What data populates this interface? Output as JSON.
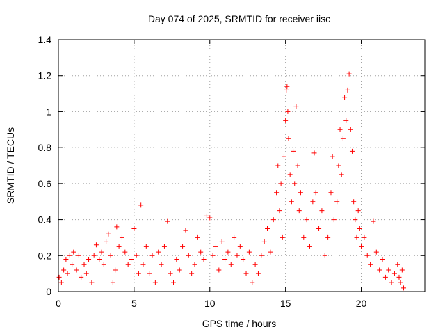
{
  "chart_data": {
    "type": "scatter",
    "title": "Day 074 of 2025, SRMTID for receiver iisc",
    "xlabel": "GPS time / hours",
    "ylabel": "SRMTID / TECUs",
    "xlim": [
      0,
      24.2
    ],
    "ylim": [
      0,
      1.4
    ],
    "xticks": [
      0,
      5,
      10,
      15,
      20
    ],
    "xtick_labels": [
      "0",
      "5",
      "10",
      "15",
      "20"
    ],
    "yticks": [
      0,
      0.2,
      0.4,
      0.6,
      0.8,
      1.0,
      1.2,
      1.4
    ],
    "ytick_labels": [
      "0",
      "0.2",
      "0.4",
      "0.6",
      "0.8",
      "1",
      "1.2",
      "1.4"
    ],
    "grid": true,
    "marker": "+",
    "marker_color": "#ff0000",
    "series": [
      {
        "name": "SRMTID",
        "points": [
          [
            0.05,
            0.08
          ],
          [
            0.2,
            0.05
          ],
          [
            0.35,
            0.12
          ],
          [
            0.5,
            0.18
          ],
          [
            0.6,
            0.1
          ],
          [
            0.75,
            0.2
          ],
          [
            0.9,
            0.15
          ],
          [
            1.0,
            0.22
          ],
          [
            1.2,
            0.12
          ],
          [
            1.35,
            0.2
          ],
          [
            1.5,
            0.08
          ],
          [
            1.7,
            0.15
          ],
          [
            1.85,
            0.1
          ],
          [
            2.0,
            0.18
          ],
          [
            2.2,
            0.05
          ],
          [
            2.35,
            0.2
          ],
          [
            2.5,
            0.26
          ],
          [
            2.7,
            0.18
          ],
          [
            2.85,
            0.22
          ],
          [
            3.0,
            0.15
          ],
          [
            3.15,
            0.28
          ],
          [
            3.3,
            0.32
          ],
          [
            3.45,
            0.2
          ],
          [
            3.6,
            0.05
          ],
          [
            3.75,
            0.12
          ],
          [
            3.85,
            0.36
          ],
          [
            4.0,
            0.25
          ],
          [
            4.2,
            0.3
          ],
          [
            4.4,
            0.22
          ],
          [
            4.6,
            0.15
          ],
          [
            4.8,
            0.18
          ],
          [
            5.0,
            0.35
          ],
          [
            5.15,
            0.2
          ],
          [
            5.3,
            0.1
          ],
          [
            5.45,
            0.48
          ],
          [
            5.6,
            0.15
          ],
          [
            5.8,
            0.25
          ],
          [
            6.0,
            0.1
          ],
          [
            6.2,
            0.2
          ],
          [
            6.4,
            0.05
          ],
          [
            6.6,
            0.22
          ],
          [
            6.8,
            0.15
          ],
          [
            7.0,
            0.25
          ],
          [
            7.2,
            0.39
          ],
          [
            7.4,
            0.1
          ],
          [
            7.6,
            0.05
          ],
          [
            7.8,
            0.18
          ],
          [
            8.0,
            0.12
          ],
          [
            8.2,
            0.25
          ],
          [
            8.4,
            0.34
          ],
          [
            8.6,
            0.2
          ],
          [
            8.8,
            0.1
          ],
          [
            9.0,
            0.15
          ],
          [
            9.2,
            0.3
          ],
          [
            9.4,
            0.22
          ],
          [
            9.6,
            0.18
          ],
          [
            9.8,
            0.42
          ],
          [
            10.0,
            0.41
          ],
          [
            10.2,
            0.2
          ],
          [
            10.4,
            0.25
          ],
          [
            10.6,
            0.12
          ],
          [
            10.8,
            0.28
          ],
          [
            11.0,
            0.18
          ],
          [
            11.2,
            0.22
          ],
          [
            11.4,
            0.15
          ],
          [
            11.6,
            0.3
          ],
          [
            11.8,
            0.2
          ],
          [
            12.0,
            0.25
          ],
          [
            12.2,
            0.18
          ],
          [
            12.4,
            0.1
          ],
          [
            12.6,
            0.22
          ],
          [
            12.8,
            0.05
          ],
          [
            13.0,
            0.15
          ],
          [
            13.2,
            0.1
          ],
          [
            13.4,
            0.2
          ],
          [
            13.6,
            0.28
          ],
          [
            13.8,
            0.35
          ],
          [
            14.0,
            0.22
          ],
          [
            14.2,
            0.4
          ],
          [
            14.4,
            0.55
          ],
          [
            14.5,
            0.7
          ],
          [
            14.6,
            0.45
          ],
          [
            14.7,
            0.6
          ],
          [
            14.8,
            0.3
          ],
          [
            14.9,
            0.75
          ],
          [
            15.0,
            0.95
          ],
          [
            15.05,
            1.12
          ],
          [
            15.1,
            1.14
          ],
          [
            15.15,
            1.0
          ],
          [
            15.2,
            0.85
          ],
          [
            15.3,
            0.65
          ],
          [
            15.4,
            0.5
          ],
          [
            15.5,
            0.78
          ],
          [
            15.6,
            0.6
          ],
          [
            15.7,
            1.03
          ],
          [
            15.8,
            0.7
          ],
          [
            15.9,
            0.45
          ],
          [
            16.0,
            0.55
          ],
          [
            16.2,
            0.3
          ],
          [
            16.4,
            0.4
          ],
          [
            16.6,
            0.25
          ],
          [
            16.8,
            0.5
          ],
          [
            16.9,
            0.77
          ],
          [
            17.0,
            0.55
          ],
          [
            17.2,
            0.35
          ],
          [
            17.4,
            0.45
          ],
          [
            17.6,
            0.2
          ],
          [
            17.8,
            0.3
          ],
          [
            18.0,
            0.55
          ],
          [
            18.1,
            0.75
          ],
          [
            18.2,
            0.4
          ],
          [
            18.4,
            0.5
          ],
          [
            18.5,
            0.7
          ],
          [
            18.6,
            0.9
          ],
          [
            18.7,
            0.65
          ],
          [
            18.8,
            0.85
          ],
          [
            18.9,
            1.08
          ],
          [
            19.0,
            0.95
          ],
          [
            19.1,
            1.12
          ],
          [
            19.2,
            1.21
          ],
          [
            19.3,
            0.9
          ],
          [
            19.4,
            0.78
          ],
          [
            19.5,
            0.5
          ],
          [
            19.6,
            0.4
          ],
          [
            19.7,
            0.3
          ],
          [
            19.8,
            0.45
          ],
          [
            19.9,
            0.35
          ],
          [
            20.0,
            0.25
          ],
          [
            20.2,
            0.3
          ],
          [
            20.4,
            0.2
          ],
          [
            20.6,
            0.15
          ],
          [
            20.8,
            0.39
          ],
          [
            21.0,
            0.22
          ],
          [
            21.2,
            0.12
          ],
          [
            21.4,
            0.18
          ],
          [
            21.6,
            0.08
          ],
          [
            21.8,
            0.12
          ],
          [
            22.0,
            0.05
          ],
          [
            22.2,
            0.1
          ],
          [
            22.4,
            0.15
          ],
          [
            22.5,
            0.08
          ],
          [
            22.6,
            0.05
          ],
          [
            22.7,
            0.12
          ],
          [
            22.8,
            0.02
          ]
        ]
      }
    ]
  }
}
